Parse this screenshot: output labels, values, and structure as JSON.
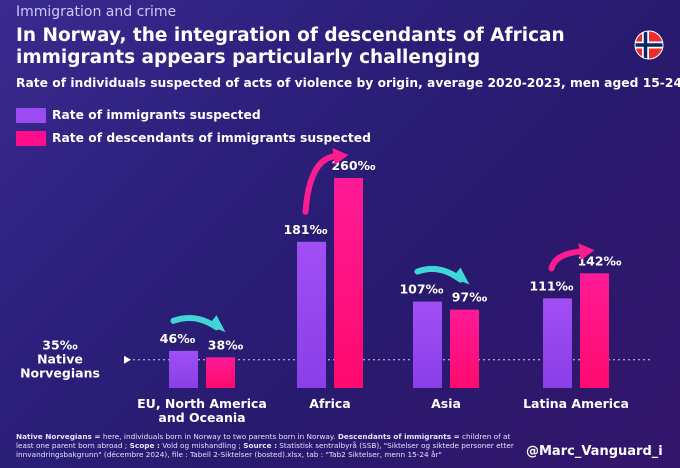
{
  "header": {
    "topic": "Immigration and crime",
    "title": "In Norway, the integration of descendants of African immigrants appears particularly challenging",
    "subtitle": "Rate of individuals suspected of acts of violence by origin, average 2020-2023, men aged 15-24",
    "flag_icon": "norway-flag-icon"
  },
  "colors": {
    "immigrants": "#9b4cf0",
    "descendants": "#ff0d8a",
    "arrow_down": "#3fd6d8",
    "arrow_up": "#ff1d8f"
  },
  "chart_data": {
    "type": "bar",
    "categories": [
      "EU, North America and Oceania",
      "Africa",
      "Asia",
      "Latina America"
    ],
    "category_lines": [
      [
        "EU, North America",
        "and Oceania"
      ],
      [
        "Africa"
      ],
      [
        "Asia"
      ],
      [
        "Latina America"
      ]
    ],
    "unit": "‰",
    "series": [
      {
        "name": "Rate of immigrants suspected",
        "values": [
          46,
          181,
          107,
          111
        ],
        "labels": [
          "46‰",
          "181‰",
          "107‰",
          "111‰"
        ]
      },
      {
        "name": "Rate of descendants of immigrants suspected",
        "values": [
          38,
          260,
          97,
          142
        ],
        "labels": [
          "38‰",
          "260‰",
          "97‰",
          "142‰"
        ]
      }
    ],
    "reference_line": {
      "value": 35,
      "label_value": "35‰",
      "label_lines": [
        "Native",
        "Norvegians"
      ]
    },
    "ylim": [
      0,
      260
    ],
    "arrows": [
      "down",
      "up",
      "down",
      "up"
    ],
    "legend_position": "top-left",
    "grid": false
  },
  "footnote": {
    "native_term": "Native Norvegians =",
    "native_def": " here, individuals born in Norway to two parents born in Norway. ",
    "desc_term": "Descendants of immigrants =",
    "desc_def": " children of at least one parent born abroad ; ",
    "scope_term": "Scope :",
    "scope_def": " Vold og mishandling ; ",
    "source_term": "Source :",
    "source_def": " Statistisk sentralbyrå (SSB), \"Siktelser og siktede personer etter innvandringsbakgrunn\" (décembre 2024), file : Tabell 2-Siktelser (bosted).xlsx, tab : \"Tab2 Siktelser, menn 15-24 år\""
  },
  "handle": "@Marc_Vanguard_i"
}
